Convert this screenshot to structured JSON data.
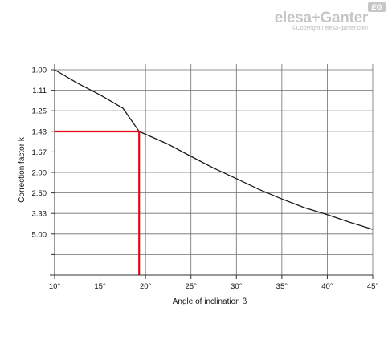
{
  "logo": {
    "name": "elesa+Ganter",
    "badge": "EG",
    "copyright": "©Copyright | elesa-ganter.com"
  },
  "chart_data": {
    "type": "line",
    "xlabel": "Angle of inclination β",
    "ylabel": "Correction factor k",
    "x_ticks": [
      "10°",
      "15°",
      "20°",
      "25°",
      "30°",
      "35°",
      "40°",
      "45°"
    ],
    "x_range": [
      10,
      45
    ],
    "y_ticks": [
      "1.00",
      "1.11",
      "1.25",
      "1.43",
      "1.67",
      "2.00",
      "2.50",
      "3.33",
      "5.00",
      "",
      ""
    ],
    "y_scale": "reciprocal",
    "grid": true,
    "series": [
      {
        "x": [
          10,
          12.5,
          15,
          17.5,
          19.3,
          22.5,
          25,
          27.5,
          30,
          32.5,
          35,
          37.5,
          40,
          42.5,
          45
        ],
        "y": [
          1.0,
          1.07,
          1.14,
          1.23,
          1.43,
          1.57,
          1.73,
          1.92,
          2.13,
          2.4,
          2.7,
          3.05,
          3.4,
          3.9,
          4.5
        ],
        "color": "#1a1a1a"
      }
    ],
    "highlight": {
      "x": 19.3,
      "y": 1.43,
      "color": "#e30613"
    }
  }
}
